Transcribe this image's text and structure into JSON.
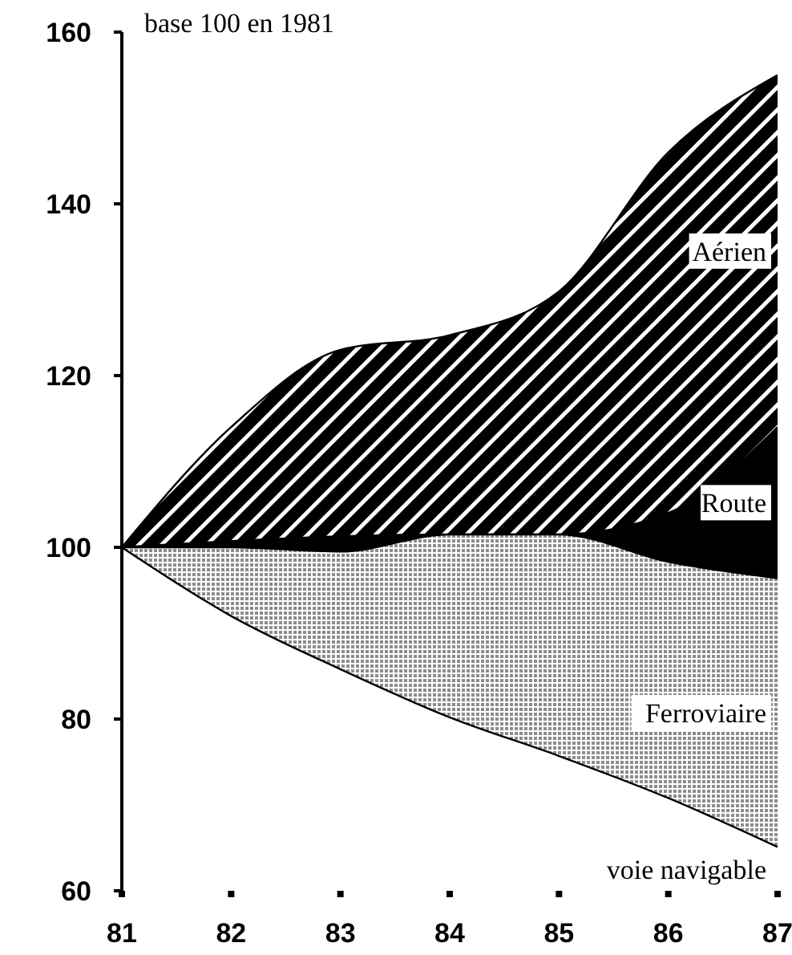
{
  "chart_data": {
    "type": "area",
    "ylabel": "base 100 en 1981",
    "x": [
      81,
      82,
      83,
      84,
      85,
      86,
      87
    ],
    "series": [
      {
        "name": "Aérien",
        "color": "#000000",
        "values": [
          100,
          114,
          123,
          124.7,
          129.8,
          146,
          155
        ]
      },
      {
        "name": "Route",
        "color": "#000000",
        "values": [
          100,
          null,
          null,
          101.5,
          101.5,
          104,
          114
        ]
      },
      {
        "name": "Ferroviaire",
        "color": "#8c8c8c",
        "values": [
          100,
          100,
          99.5,
          101.5,
          101.5,
          98.3,
          96.4
        ]
      },
      {
        "name": "voie navigable",
        "color": "#ffffff",
        "values": [
          100,
          92,
          85.8,
          80.2,
          75.7,
          70.8,
          65.1
        ]
      }
    ],
    "xlim": [
      81,
      87
    ],
    "xticks": [
      81,
      82,
      83,
      84,
      85,
      86,
      87
    ],
    "ylim": [
      60,
      160
    ],
    "yticks": [
      60,
      80,
      100,
      120,
      140,
      160
    ],
    "grid": false,
    "legend": false
  }
}
